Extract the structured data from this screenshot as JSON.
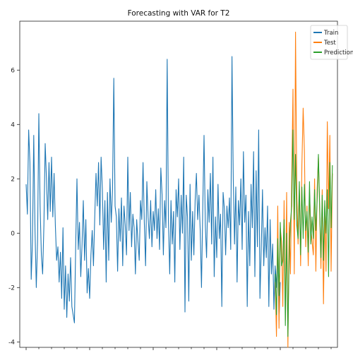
{
  "chart_data": {
    "type": "line",
    "title": "Forecasting with VAR for T2",
    "xlabel": "",
    "ylabel": "",
    "ylim": [
      -4.2,
      7.8
    ],
    "xlim": [
      -5,
      245
    ],
    "y_ticks": [
      -4,
      -2,
      0,
      2,
      4,
      6
    ],
    "y_tick_labels": [
      "-4",
      "-2",
      "0",
      "2",
      "4",
      "6"
    ],
    "x_tick_labels": [],
    "grid": false,
    "legend_position": "top-right",
    "series": [
      {
        "name": "Train",
        "color": "#1f77b4",
        "x_start": 0,
        "values": [
          1.8,
          0.7,
          3.8,
          2.6,
          -1.7,
          -0.3,
          3.6,
          0.1,
          -2.0,
          -0.3,
          4.4,
          1.0,
          -0.8,
          -1.5,
          0.3,
          3.3,
          2.0,
          0.5,
          2.6,
          0.8,
          2.8,
          0.6,
          2.2,
          0.3,
          -1.0,
          -0.5,
          -1.8,
          -0.7,
          -2.4,
          0.2,
          -2.8,
          -1.2,
          -3.1,
          -1.5,
          -2.5,
          -0.9,
          -2.7,
          -3.0,
          -3.3,
          -0.5,
          2.0,
          -0.6,
          0.4,
          -1.6,
          -0.4,
          1.2,
          -1.0,
          0.5,
          -2.2,
          -1.3,
          -2.4,
          -0.8,
          0.1,
          -1.2,
          0.6,
          2.2,
          1.0,
          2.6,
          0.3,
          2.8,
          1.6,
          -0.6,
          1.2,
          -1.8,
          1.5,
          -1.0,
          2.0,
          0.4,
          1.6,
          5.7,
          1.0,
          0.6,
          -1.4,
          0.9,
          -0.3,
          1.3,
          -1.2,
          1.0,
          0.3,
          -0.8,
          2.8,
          0.1,
          1.5,
          -0.5,
          0.7,
          0.2,
          -1.5,
          0.5,
          -0.3,
          -1.0,
          1.2,
          0.5,
          2.6,
          0.4,
          -1.2,
          1.9,
          0.6,
          -0.2,
          1.2,
          -0.5,
          0.8,
          0.1,
          1.6,
          -0.2,
          0.9,
          -0.6,
          2.4,
          1.4,
          -0.8,
          1.2,
          0.2,
          6.4,
          0.4,
          -1.5,
          1.2,
          -0.4,
          0.8,
          -1.8,
          1.6,
          0.6,
          2.0,
          -0.6,
          1.4,
          0.0,
          2.8,
          -2.9,
          1.4,
          0.6,
          -2.5,
          1.8,
          -1.0,
          0.8,
          -0.8,
          1.2,
          2.2,
          0.5,
          1.4,
          0.1,
          -2.0,
          0.9,
          3.6,
          0.3,
          -0.9,
          1.6,
          0.4,
          2.2,
          -0.4,
          2.8,
          -1.6,
          0.6,
          -0.9,
          1.8,
          -0.2,
          0.7,
          -2.7,
          1.5,
          0.9,
          -0.8,
          1.0,
          0.2,
          1.3,
          -0.6,
          6.5,
          2.0,
          -0.4,
          1.7,
          -1.8,
          1.2,
          0.3,
          2.0,
          -0.6,
          3.0,
          0.4,
          1.4,
          -2.7,
          0.8,
          -1.2,
          1.8,
          0.2,
          3.0,
          -1.6,
          2.3,
          -0.5,
          3.8,
          -2.4,
          -0.6,
          1.6,
          -1.2,
          0.2,
          -0.9,
          1.0,
          -2.7,
          0.5,
          -1.5,
          -0.4,
          -2.8,
          -1.2,
          -2.0,
          -0.6,
          -3.2,
          -1.8
        ]
      },
      {
        "name": "Test",
        "color": "#ff7f0e",
        "x_start": 196,
        "values": [
          -1.8,
          -3.8,
          1.0,
          -3.5,
          0.2,
          -0.3,
          -2.7,
          1.2,
          -3.2,
          1.5,
          -4.2,
          0.4,
          -1.5,
          2.0,
          5.3,
          -1.5,
          7.4,
          1.5,
          -0.4,
          1.6,
          -1.2,
          2.5,
          4.6,
          3.0,
          -0.5,
          1.0,
          -1.2,
          1.5,
          0.2,
          -0.3,
          -0.8,
          2.0,
          -1.4,
          1.6,
          2.8,
          0.8,
          -1.3,
          1.6,
          -2.6,
          1.0,
          -1.4,
          4.1,
          0.9,
          3.6,
          -1.4,
          2.2
        ]
      },
      {
        "name": "Prediction",
        "color": "#2ca02c",
        "x_start": 196,
        "values": [
          -1.5,
          -3.0,
          -0.2,
          -2.3,
          0.4,
          -1.2,
          -1.0,
          0.5,
          -3.4,
          0.0,
          -3.8,
          -0.8,
          0.4,
          1.0,
          3.8,
          0.5,
          2.9,
          0.3,
          -0.2,
          1.9,
          -0.8,
          1.7,
          -0.2,
          1.8,
          0.1,
          0.8,
          -0.7,
          1.9,
          -0.4,
          0.6,
          -0.2,
          1.6,
          0.1,
          1.2,
          2.9,
          1.0,
          -0.9,
          1.4,
          -1.0,
          1.2,
          0.0,
          1.6,
          -1.6,
          2.6,
          0.2,
          2.5
        ]
      }
    ]
  }
}
